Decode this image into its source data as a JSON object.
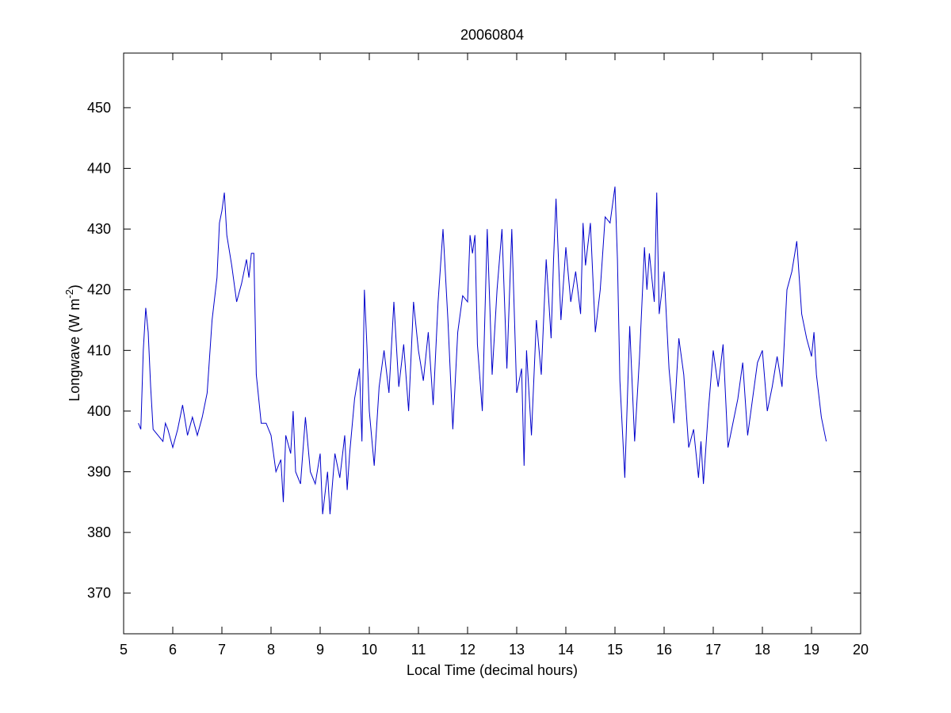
{
  "chart_data": {
    "type": "line",
    "title": "20060804",
    "x_label": "Local Time (decimal hours)",
    "y_label": {
      "text": "Longwave (W m",
      "superscript": "-2",
      "suffix": ")"
    },
    "xlim": [
      5,
      20
    ],
    "xticks": [
      5,
      6,
      7,
      8,
      9,
      10,
      11,
      12,
      13,
      14,
      15,
      16,
      17,
      18,
      19,
      20
    ],
    "ylim": [
      363.3,
      459
    ],
    "yticks": [
      370,
      380,
      390,
      400,
      410,
      420,
      430,
      440,
      450
    ],
    "series": [
      {
        "color": "#0000cc",
        "x": [
          5.3,
          5.35,
          5.4,
          5.45,
          5.5,
          5.55,
          5.6,
          5.7,
          5.8,
          5.85,
          5.9,
          6.0,
          6.1,
          6.2,
          6.3,
          6.4,
          6.5,
          6.6,
          6.7,
          6.8,
          6.9,
          6.95,
          7.0,
          7.05,
          7.1,
          7.2,
          7.3,
          7.4,
          7.5,
          7.55,
          7.6,
          7.65,
          7.7,
          7.8,
          7.9,
          8.0,
          8.1,
          8.2,
          8.25,
          8.3,
          8.4,
          8.45,
          8.5,
          8.6,
          8.7,
          8.8,
          8.9,
          9.0,
          9.05,
          9.15,
          9.2,
          9.3,
          9.4,
          9.5,
          9.55,
          9.6,
          9.7,
          9.8,
          9.85,
          9.9,
          9.95,
          10.0,
          10.1,
          10.2,
          10.3,
          10.4,
          10.5,
          10.6,
          10.7,
          10.8,
          10.9,
          11.0,
          11.1,
          11.2,
          11.3,
          11.4,
          11.5,
          11.6,
          11.7,
          11.8,
          11.9,
          12.0,
          12.05,
          12.1,
          12.15,
          12.2,
          12.3,
          12.4,
          12.5,
          12.6,
          12.7,
          12.8,
          12.9,
          13.0,
          13.1,
          13.15,
          13.2,
          13.3,
          13.4,
          13.5,
          13.6,
          13.7,
          13.75,
          13.8,
          13.9,
          14.0,
          14.1,
          14.2,
          14.3,
          14.35,
          14.4,
          14.5,
          14.6,
          14.7,
          14.8,
          14.9,
          15.0,
          15.05,
          15.1,
          15.2,
          15.3,
          15.4,
          15.5,
          15.6,
          15.65,
          15.7,
          15.8,
          15.85,
          15.9,
          16.0,
          16.1,
          16.2,
          16.3,
          16.4,
          16.5,
          16.6,
          16.7,
          16.75,
          16.8,
          16.9,
          17.0,
          17.1,
          17.2,
          17.3,
          17.4,
          17.5,
          17.6,
          17.7,
          17.8,
          17.9,
          18.0,
          18.1,
          18.2,
          18.3,
          18.4,
          18.5,
          18.6,
          18.7,
          18.8,
          18.9,
          19.0,
          19.05,
          19.1,
          19.2,
          19.3
        ],
        "values": [
          398,
          397,
          410,
          417,
          413,
          404,
          397,
          396,
          395,
          398,
          397,
          394,
          397,
          401,
          396,
          399,
          396,
          399,
          403,
          415,
          422,
          431,
          433,
          436,
          429,
          424,
          418,
          421,
          425,
          422,
          426,
          426,
          406,
          398,
          398,
          396,
          390,
          392,
          385,
          396,
          393,
          400,
          390,
          388,
          399,
          390,
          388,
          393,
          383,
          390,
          383,
          393,
          389,
          396,
          387,
          393,
          402,
          407,
          395,
          420,
          411,
          400,
          391,
          404,
          410,
          403,
          418,
          404,
          411,
          400,
          418,
          410,
          405,
          413,
          401,
          418,
          430,
          415,
          397,
          413,
          419,
          418,
          429,
          426,
          429,
          411,
          400,
          430,
          406,
          420,
          430,
          407,
          430,
          403,
          407,
          391,
          410,
          396,
          415,
          406,
          425,
          412,
          425,
          435,
          415,
          427,
          418,
          423,
          416,
          431,
          424,
          431,
          413,
          420,
          432,
          431,
          437,
          425,
          405,
          389,
          414,
          395,
          409,
          427,
          420,
          426,
          418,
          436,
          416,
          423,
          407,
          398,
          412,
          406,
          394,
          397,
          389,
          395,
          388,
          400,
          410,
          404,
          411,
          394,
          398,
          402,
          408,
          396,
          402,
          408,
          410,
          400,
          404,
          409,
          404,
          420,
          423,
          428,
          416,
          412,
          409,
          413,
          406,
          399,
          395
        ]
      }
    ]
  }
}
